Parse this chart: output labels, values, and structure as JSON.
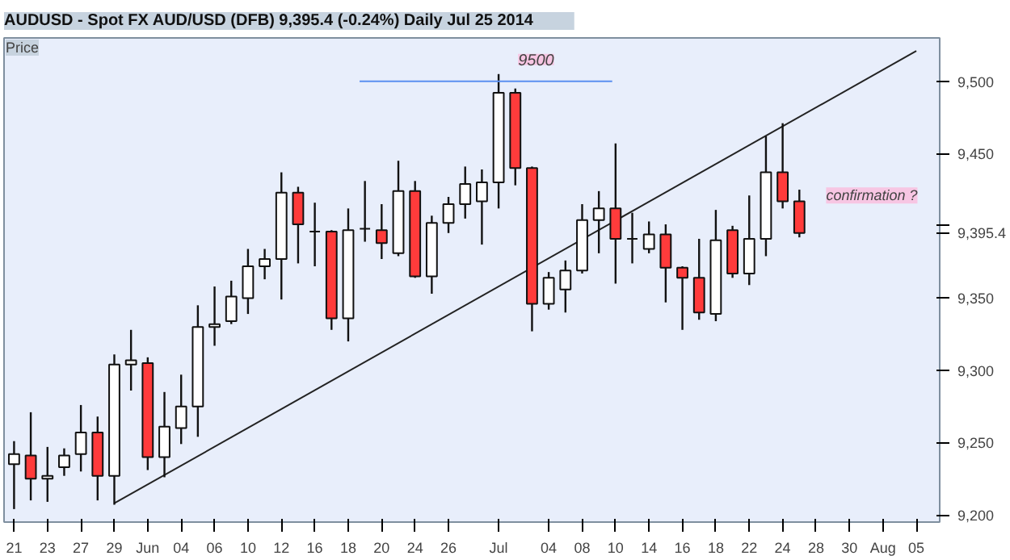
{
  "chart_data": {
    "type": "candlestick",
    "title": "AUDUSD - Spot FX AUD/USD (DFB)     9,395.4 (-0.24%)     Daily  Jul 25 2014",
    "categories": [
      "21",
      null,
      "23",
      null,
      "27",
      null,
      "29",
      null,
      "Jun",
      null,
      "04",
      null,
      "06",
      null,
      "10",
      null,
      "12",
      null,
      "16",
      null,
      "18",
      null,
      "20",
      null,
      "24",
      null,
      "26",
      null,
      null,
      "Jul",
      null,
      null,
      "04",
      null,
      "08",
      null,
      "10",
      null,
      "14",
      null,
      "16",
      null,
      "18",
      null,
      "22",
      null,
      "24",
      null,
      "28",
      null,
      "30",
      null,
      "Aug",
      null,
      "05"
    ],
    "ohlc": [
      [
        9235,
        9251,
        9204,
        9242
      ],
      [
        9241,
        9271,
        9210,
        9225
      ],
      [
        9225,
        9247,
        9209,
        9227
      ],
      [
        9233,
        9246,
        9227,
        9241
      ],
      [
        9242,
        9276,
        9230,
        9257
      ],
      [
        9257,
        9268,
        9210,
        9227
      ],
      [
        9227,
        9311,
        9207,
        9304
      ],
      [
        9304,
        9328,
        9286,
        9307
      ],
      [
        9305,
        9309,
        9231,
        9240
      ],
      [
        9240,
        9285,
        9226,
        9261
      ],
      [
        9260,
        9297,
        9249,
        9275
      ],
      [
        9275,
        9345,
        9254,
        9330
      ],
      [
        9330,
        9358,
        9317,
        9332
      ],
      [
        9334,
        9362,
        9332,
        9351
      ],
      [
        9350,
        9384,
        9339,
        9372
      ],
      [
        9372,
        9384,
        9363,
        9377
      ],
      [
        9377,
        9437,
        9349,
        9423
      ],
      [
        9423,
        9427,
        9374,
        9401
      ],
      [
        9396,
        9416,
        9372,
        9396
      ],
      [
        9396,
        9397,
        9328,
        9336
      ],
      [
        9336,
        9412,
        9320,
        9397
      ],
      [
        9398,
        9431,
        9389,
        9398
      ],
      [
        9397,
        9415,
        9377,
        9388
      ],
      [
        9381,
        9445,
        9379,
        9424
      ],
      [
        9424,
        9431,
        9364,
        9365
      ],
      [
        9365,
        9407,
        9353,
        9402
      ],
      [
        9402,
        9420,
        9395,
        9415
      ],
      [
        9415,
        9441,
        9405,
        9429
      ],
      [
        9417,
        9439,
        9387,
        9430
      ],
      [
        9430,
        9505,
        9412,
        9492
      ],
      [
        9492,
        9495,
        9428,
        9440
      ],
      [
        9440,
        9441,
        9327,
        9346
      ],
      [
        9346,
        9368,
        9342,
        9364
      ],
      [
        9356,
        9376,
        9340,
        9369
      ],
      [
        9369,
        9415,
        9367,
        9404
      ],
      [
        9404,
        9424,
        9381,
        9412
      ],
      [
        9412,
        9457,
        9360,
        9391
      ],
      [
        9391,
        9409,
        9374,
        9391
      ],
      [
        9384,
        9403,
        9381,
        9394
      ],
      [
        9394,
        9401,
        9347,
        9371
      ],
      [
        9371,
        9372,
        9328,
        9364
      ],
      [
        9364,
        9391,
        9335,
        9340
      ],
      [
        9339,
        9411,
        9334,
        9390
      ],
      [
        9397,
        9400,
        9364,
        9367
      ],
      [
        9367,
        9421,
        9359,
        9391
      ],
      [
        9391,
        9462,
        9379,
        9437
      ],
      [
        9437,
        9471,
        9412,
        9417
      ],
      [
        9417,
        9425,
        9392,
        9395
      ],
      null,
      null,
      null,
      null,
      null,
      null,
      null
    ],
    "series": [
      {
        "type": "line",
        "color": "#222222",
        "x": [
          "29",
          "05"
        ],
        "values": [
          9208,
          9521
        ]
      }
    ],
    "ylim": [
      9195,
      9530
    ],
    "yticks": [
      {
        "value": 9200,
        "label": "9,200"
      },
      {
        "value": 9250,
        "label": "9,250"
      },
      {
        "value": 9300,
        "label": "9,300"
      },
      {
        "value": 9350,
        "label": "9,350"
      },
      {
        "value": 9395.4,
        "label": "9,395.4"
      },
      {
        "value": 9400,
        "label": null
      },
      {
        "value": 9450,
        "label": "9,450"
      },
      {
        "value": 9500,
        "label": "9,500"
      }
    ],
    "ref_lines": [
      {
        "axis": "y",
        "value": 9500,
        "label": "9500",
        "color": "#5b8ff0"
      }
    ],
    "annotations": [
      "Price",
      "confirmation ?"
    ],
    "grid": false
  }
}
